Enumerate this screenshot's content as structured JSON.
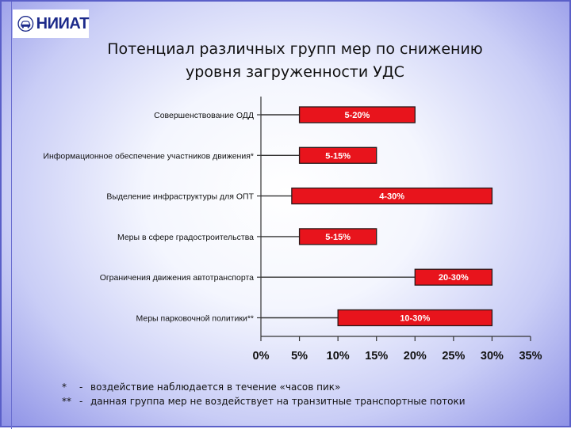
{
  "logo": {
    "text": "НИИАТ",
    "icon": "car-emblem-icon"
  },
  "title_lines": [
    "Потенциал различных групп мер по снижению",
    "уровня загруженности УДС"
  ],
  "chart_data": {
    "type": "bar",
    "orientation": "horizontal",
    "range_bars": true,
    "categories": [
      "Совершенствование ОДД",
      "Информационное обеспечение участников движения*",
      "Выделение инфраструктуры для ОПТ",
      "Меры в сфере градостроительства",
      "Ограничения движения автотранспорта",
      "Меры парковочной политики**"
    ],
    "ranges": [
      [
        5,
        20
      ],
      [
        5,
        15
      ],
      [
        4,
        30
      ],
      [
        5,
        15
      ],
      [
        20,
        30
      ],
      [
        10,
        30
      ]
    ],
    "labels": [
      "5-20%",
      "5-15%",
      "4-30%",
      "5-15%",
      "20-30%",
      "10-30%"
    ],
    "x_ticks": [
      "0%",
      "5%",
      "10%",
      "15%",
      "20%",
      "25%",
      "30%",
      "35%"
    ],
    "xlim": [
      0,
      35
    ],
    "grid": false,
    "bar_color": "#e8141c",
    "bar_edge_color": "#2a1a1a",
    "label_color": "#ffffff"
  },
  "footnotes": [
    {
      "mark": "*",
      "dash": "-",
      "text": "воздействие наблюдается в течение «часов пик»"
    },
    {
      "mark": "**",
      "dash": "-",
      "text": "данная группа мер не воздействует на транзитные транспортные потоки"
    }
  ]
}
